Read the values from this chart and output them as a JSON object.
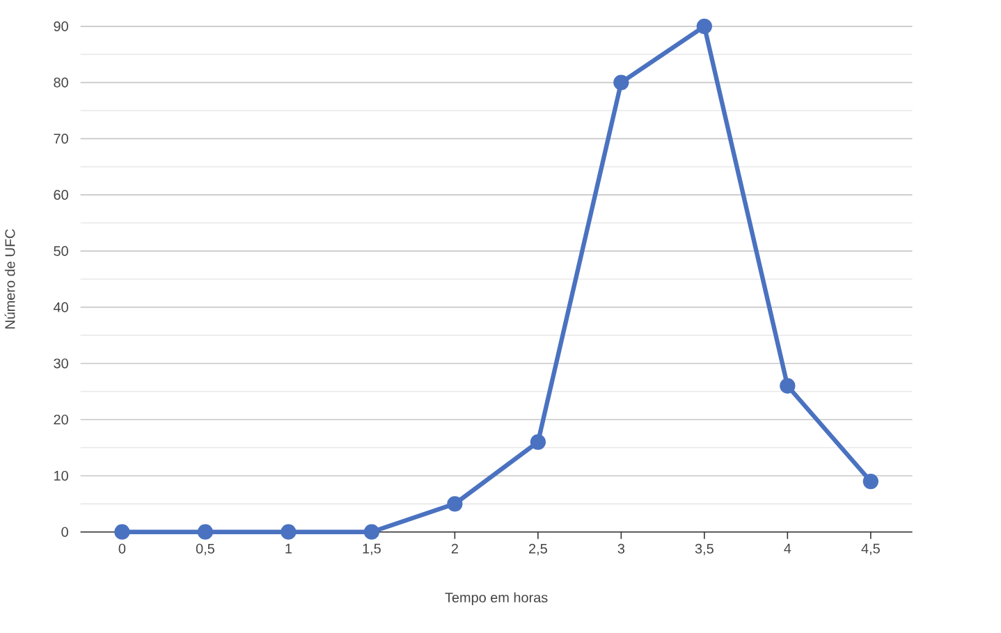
{
  "chart_data": {
    "type": "line",
    "xlabel": "Tempo em horas",
    "ylabel": "Número de UFC",
    "categories": [
      "0",
      "0,5",
      "1",
      "1,5",
      "2",
      "2,5",
      "3",
      "3,5",
      "4",
      "4,5"
    ],
    "series": [
      {
        "color": "#4a72c0",
        "values": [
          0,
          0,
          0,
          0,
          5,
          16,
          80,
          90,
          26,
          9
        ]
      }
    ],
    "ylim": [
      0,
      90
    ],
    "yticks": [
      0,
      10,
      20,
      30,
      40,
      50,
      60,
      70,
      80,
      90
    ],
    "grid": "y",
    "marker": "circle",
    "line_style": "solid"
  }
}
